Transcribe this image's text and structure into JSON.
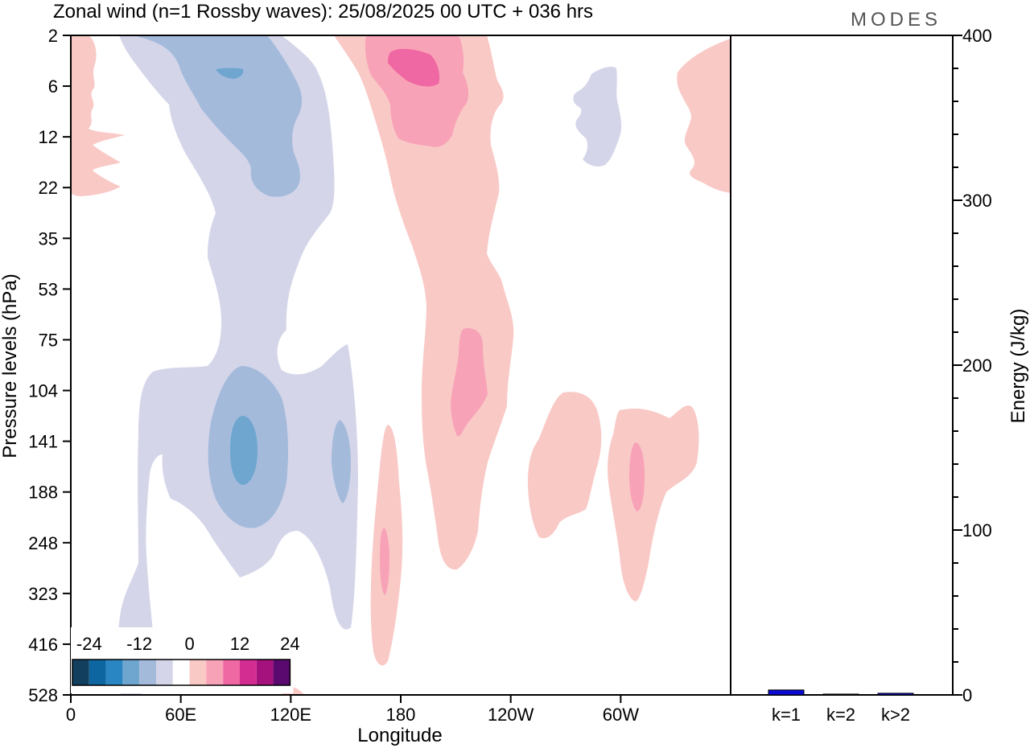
{
  "header": {
    "title": "Zonal wind (n=1 Rossby waves):  25/08/2025  00 UTC  + 036 hrs",
    "logo": "MODES"
  },
  "chart_data": [
    {
      "type": "heatmap",
      "title": "Zonal wind (n=1 Rossby waves):  25/08/2025  00 UTC  + 036 hrs",
      "xlabel": "Longitude",
      "ylabel": "Pressure levels (hPa)",
      "x_ticks": [
        "0",
        "60E",
        "120E",
        "180",
        "120W",
        "60W"
      ],
      "y_ticks": [
        "2",
        "6",
        "12",
        "22",
        "35",
        "53",
        "75",
        "104",
        "141",
        "188",
        "248",
        "323",
        "416",
        "528"
      ],
      "grid": false,
      "colorbar": {
        "labels": [
          "-24",
          "-12",
          "0",
          "12",
          "24"
        ],
        "levels": [
          -28,
          -24,
          -20,
          -16,
          -12,
          -8,
          -4,
          4,
          8,
          12,
          16,
          20,
          24,
          28
        ],
        "colors": [
          "#123f5e",
          "#0d66a0",
          "#2a86c2",
          "#6ea6d0",
          "#a3badb",
          "#d4d5e9",
          "#ffffff",
          "#f9c9c6",
          "#f8a2b7",
          "#f068a3",
          "#d42d91",
          "#a5117d",
          "#5a0a6e"
        ],
        "placement": "bottom-left"
      }
    },
    {
      "type": "bar",
      "categories": [
        "k=1",
        "k=2",
        "k>2"
      ],
      "values": [
        3,
        0.5,
        1
      ],
      "ylabel": "Energy (J/kg)",
      "ylim": [
        0,
        400
      ],
      "y_ticks": [
        "0",
        "100",
        "200",
        "300",
        "400"
      ],
      "bar_colors": [
        "#0a0ad2",
        "#0a0ad2",
        "#0a0ad2"
      ]
    }
  ]
}
